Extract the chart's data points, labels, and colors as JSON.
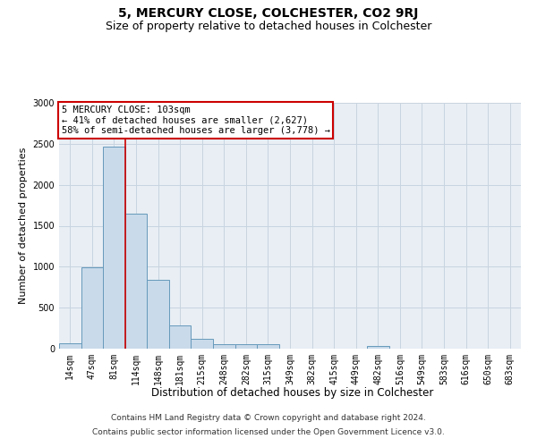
{
  "title": "5, MERCURY CLOSE, COLCHESTER, CO2 9RJ",
  "subtitle": "Size of property relative to detached houses in Colchester",
  "xlabel": "Distribution of detached houses by size in Colchester",
  "ylabel": "Number of detached properties",
  "categories": [
    "14sqm",
    "47sqm",
    "81sqm",
    "114sqm",
    "148sqm",
    "181sqm",
    "215sqm",
    "248sqm",
    "282sqm",
    "315sqm",
    "349sqm",
    "382sqm",
    "415sqm",
    "449sqm",
    "482sqm",
    "516sqm",
    "549sqm",
    "583sqm",
    "616sqm",
    "650sqm",
    "683sqm"
  ],
  "values": [
    70,
    990,
    2470,
    1650,
    840,
    280,
    120,
    60,
    50,
    50,
    0,
    0,
    0,
    0,
    30,
    0,
    0,
    0,
    0,
    0,
    0
  ],
  "bar_color": "#c9daea",
  "bar_edge_color": "#6699bb",
  "vline_color": "#cc0000",
  "vline_index": 2.5,
  "annotation_text": "5 MERCURY CLOSE: 103sqm\n← 41% of detached houses are smaller (2,627)\n58% of semi-detached houses are larger (3,778) →",
  "annotation_box_facecolor": "white",
  "annotation_box_edgecolor": "#cc0000",
  "ylim": [
    0,
    3000
  ],
  "yticks": [
    0,
    500,
    1000,
    1500,
    2000,
    2500,
    3000
  ],
  "grid_color": "#c8d4e0",
  "plot_bg_color": "#e8eef4",
  "footer_line1": "Contains HM Land Registry data © Crown copyright and database right 2024.",
  "footer_line2": "Contains public sector information licensed under the Open Government Licence v3.0.",
  "title_fontsize": 10,
  "subtitle_fontsize": 9,
  "xlabel_fontsize": 8.5,
  "ylabel_fontsize": 8,
  "tick_fontsize": 7,
  "annotation_fontsize": 7.5,
  "footer_fontsize": 6.5
}
